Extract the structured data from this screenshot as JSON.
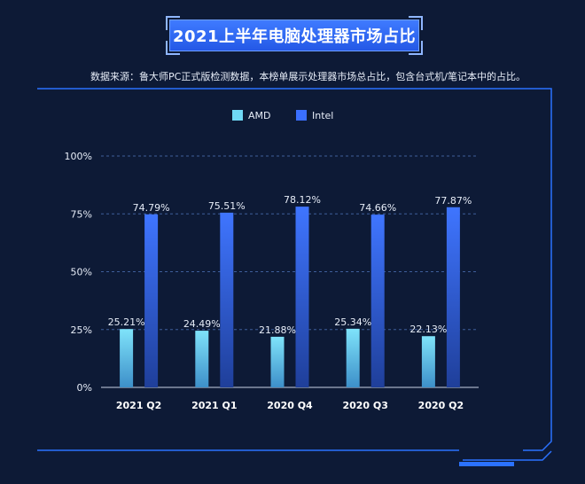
{
  "title": "2021上半年电脑处理器市场占比",
  "source_note": "数据来源：鲁大师PC正式版检测数据，本榜单展示处理器市场总占比，包含台式机/笔记本中的占比。",
  "colors": {
    "background": "#0d1a36",
    "frame": "#2b72ff",
    "amd": "#6fd8f5",
    "intel": "#3a6fff",
    "grid": "#3e5e9a",
    "text": "#e6ecf7"
  },
  "chart_data": {
    "type": "bar",
    "categories": [
      "2021 Q2",
      "2021 Q1",
      "2020 Q4",
      "2020 Q3",
      "2020 Q2"
    ],
    "series": [
      {
        "name": "AMD",
        "values": [
          25.21,
          24.49,
          21.88,
          25.34,
          22.13
        ],
        "labels": [
          "25.21%",
          "24.49%",
          "21.88%",
          "25.34%",
          "22.13%"
        ]
      },
      {
        "name": "Intel",
        "values": [
          74.79,
          75.51,
          78.12,
          74.66,
          77.87
        ],
        "labels": [
          "74.79%",
          "75.51%",
          "78.12%",
          "74.66%",
          "77.87%"
        ]
      }
    ],
    "ylim": [
      0,
      100
    ],
    "yticks": [
      "0%",
      "25%",
      "50%",
      "75%",
      "100%"
    ],
    "legend_position": "top-center",
    "grid": true
  }
}
